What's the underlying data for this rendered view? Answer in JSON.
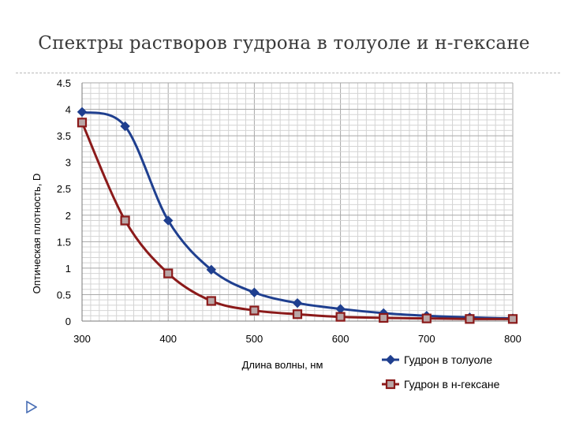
{
  "slide": {
    "title": "Спектры растворов гудрона в толуоле и н-гексане"
  },
  "chart_data": {
    "type": "line",
    "xlabel": "Длина волны, нм",
    "ylabel": "Оптическая плотность, D",
    "xlim": [
      300,
      800
    ],
    "ylim": [
      0,
      4.5
    ],
    "x_ticks": [
      300,
      400,
      500,
      600,
      700,
      800
    ],
    "y_ticks": [
      "0",
      "0.5",
      "1",
      "1.5",
      "2",
      "2.5",
      "3",
      "3.5",
      "4",
      "4.5"
    ],
    "grid": true,
    "legend_position": "bottom-right",
    "series": [
      {
        "name": "Гудрон в толуоле",
        "color": "#1f3f8f",
        "marker": "diamond",
        "x": [
          300,
          350,
          400,
          450,
          500,
          550,
          600,
          650,
          700,
          750,
          800
        ],
        "y": [
          3.95,
          3.68,
          1.9,
          0.97,
          0.54,
          0.34,
          0.23,
          0.15,
          0.1,
          0.07,
          0.05
        ]
      },
      {
        "name": "Гудрон в н-гексане",
        "color": "#8b1a1a",
        "marker": "square",
        "x": [
          300,
          350,
          400,
          450,
          500,
          550,
          600,
          650,
          700,
          750,
          800
        ],
        "y": [
          3.75,
          1.9,
          0.9,
          0.38,
          0.2,
          0.13,
          0.08,
          0.06,
          0.05,
          0.04,
          0.04
        ]
      }
    ]
  },
  "nav": {
    "icon": "triangle-arrow-icon",
    "color": "#4a6fb5"
  }
}
